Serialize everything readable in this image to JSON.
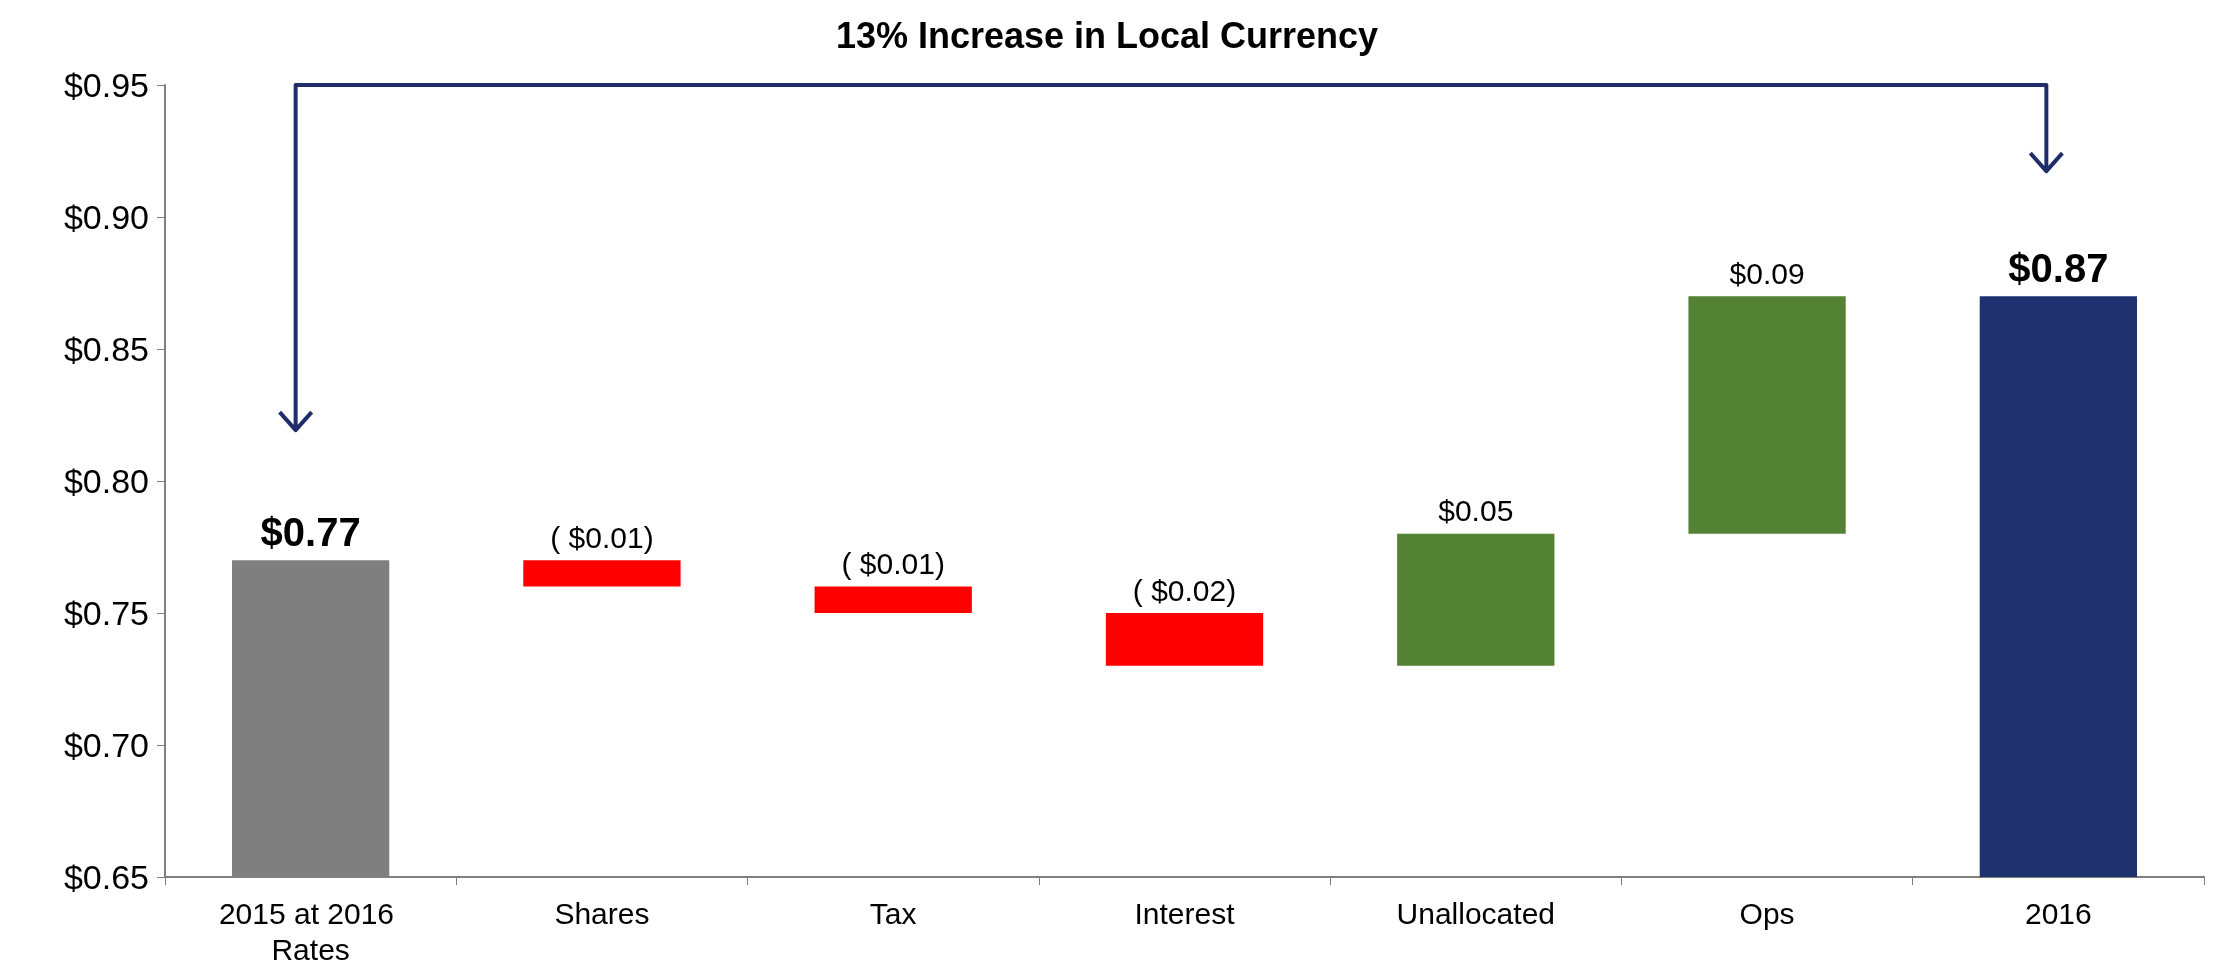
{
  "chart_data": {
    "type": "bar",
    "title": "13% Increase in Local Currency",
    "categories": [
      "2015 at 2016 Rates",
      "Shares",
      "Tax",
      "Interest",
      "Unallocated",
      "Ops",
      "2016"
    ],
    "base": [
      0.65,
      0.77,
      0.76,
      0.75,
      0.73,
      0.78,
      0.65
    ],
    "values": [
      0.12,
      -0.01,
      -0.01,
      -0.02,
      0.05,
      0.09,
      0.22
    ],
    "colors": [
      "#7f7f7f",
      "#ff0000",
      "#ff0000",
      "#ff0000",
      "#548235",
      "#548235",
      "#203170"
    ],
    "value_labels": [
      "$0.77",
      "( $0.01)",
      "( $0.01)",
      "( $0.02)",
      "$0.05",
      "$0.09",
      "$0.87"
    ],
    "ylim": [
      0.65,
      0.95
    ],
    "yticks": [
      {
        "value": 0.65,
        "label": "$0.65"
      },
      {
        "value": 0.7,
        "label": "$0.70"
      },
      {
        "value": 0.75,
        "label": "$0.75"
      },
      {
        "value": 0.8,
        "label": "$0.80"
      },
      {
        "value": 0.85,
        "label": "$0.85"
      },
      {
        "value": 0.9,
        "label": "$0.90"
      },
      {
        "value": 0.95,
        "label": "$0.95"
      }
    ],
    "grid": false
  }
}
